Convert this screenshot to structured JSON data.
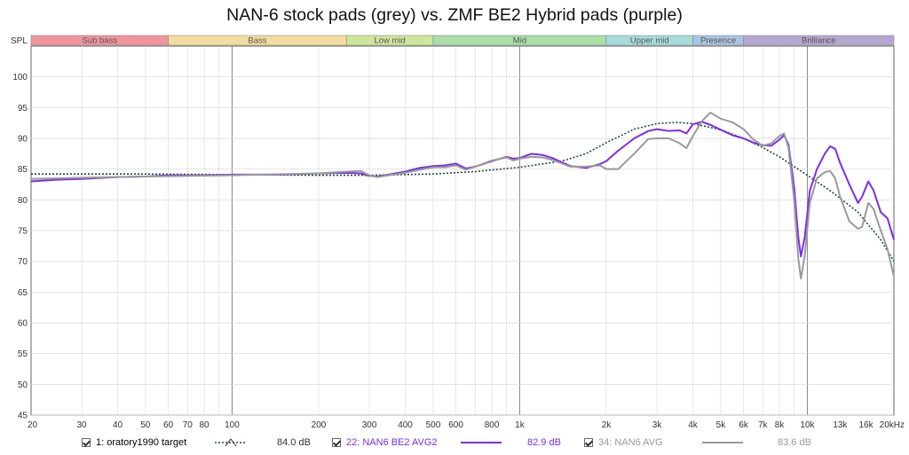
{
  "chart_data": {
    "type": "line",
    "title": "NAN-6 stock pads (grey) vs. ZMF BE2 Hybrid pads (purple)",
    "ylabel": "SPL",
    "xunit": "kHz",
    "x_scale": "log",
    "xlim": [
      20,
      20000
    ],
    "ylim": [
      45,
      105
    ],
    "grid": true,
    "y_ticks": [
      45,
      50,
      55,
      60,
      65,
      70,
      75,
      80,
      85,
      90,
      95,
      100
    ],
    "x_ticks": [
      {
        "v": 20,
        "label": "20"
      },
      {
        "v": 30,
        "label": "30"
      },
      {
        "v": 40,
        "label": "40"
      },
      {
        "v": 50,
        "label": "50"
      },
      {
        "v": 60,
        "label": "60"
      },
      {
        "v": 70,
        "label": "70"
      },
      {
        "v": 80,
        "label": "80"
      },
      {
        "v": 100,
        "label": "100"
      },
      {
        "v": 200,
        "label": "200"
      },
      {
        "v": 300,
        "label": "300"
      },
      {
        "v": 400,
        "label": "400"
      },
      {
        "v": 500,
        "label": "500"
      },
      {
        "v": 600,
        "label": "600"
      },
      {
        "v": 800,
        "label": "800"
      },
      {
        "v": 1000,
        "label": "1k"
      },
      {
        "v": 2000,
        "label": "2k"
      },
      {
        "v": 3000,
        "label": "3k"
      },
      {
        "v": 4000,
        "label": "4k"
      },
      {
        "v": 5000,
        "label": "5k"
      },
      {
        "v": 6000,
        "label": "6k"
      },
      {
        "v": 7000,
        "label": "7k"
      },
      {
        "v": 8000,
        "label": "8k"
      },
      {
        "v": 10000,
        "label": "10k"
      },
      {
        "v": 13000,
        "label": "13k"
      },
      {
        "v": 16000,
        "label": "16k"
      },
      {
        "v": 20000,
        "label": "20kHz"
      }
    ],
    "bands": [
      {
        "name": "Sub bass",
        "from": 20,
        "to": 60,
        "color": "#f0959b"
      },
      {
        "name": "Bass",
        "from": 60,
        "to": 250,
        "color": "#f3dd9c"
      },
      {
        "name": "Low mid",
        "from": 250,
        "to": 500,
        "color": "#cfe79c"
      },
      {
        "name": "Mid",
        "from": 500,
        "to": 2000,
        "color": "#a8e0a8"
      },
      {
        "name": "Upper mid",
        "from": 2000,
        "to": 4000,
        "color": "#a6dcdc"
      },
      {
        "name": "Presence",
        "from": 4000,
        "to": 6000,
        "color": "#a8c4e2"
      },
      {
        "name": "Brilliance",
        "from": 6000,
        "to": 20000,
        "color": "#b7a6d1"
      }
    ],
    "series": [
      {
        "name": "1: oratory1990 target",
        "color": "#1e4a3c",
        "dash": "2,2",
        "level": "84.0 dB",
        "points": [
          [
            20,
            84.2
          ],
          [
            50,
            84.2
          ],
          [
            100,
            84.1
          ],
          [
            200,
            84.0
          ],
          [
            300,
            84.0
          ],
          [
            500,
            84.2
          ],
          [
            700,
            84.6
          ],
          [
            1000,
            85.3
          ],
          [
            1400,
            86.3
          ],
          [
            1700,
            87.5
          ],
          [
            2000,
            89.3
          ],
          [
            2500,
            91.5
          ],
          [
            3000,
            92.4
          ],
          [
            3500,
            92.6
          ],
          [
            4000,
            92.4
          ],
          [
            5000,
            91.4
          ],
          [
            6000,
            90.0
          ],
          [
            7000,
            88.5
          ],
          [
            8000,
            87.0
          ],
          [
            10000,
            84.0
          ],
          [
            12000,
            81.5
          ],
          [
            15000,
            78.0
          ],
          [
            18000,
            73.5
          ],
          [
            20000,
            70.0
          ]
        ]
      },
      {
        "name": "22: NAN6 BE2 AVG2",
        "color": "#7b2ee6",
        "dash": "",
        "level": "82.9 dB",
        "points": [
          [
            20,
            83.0
          ],
          [
            25,
            83.3
          ],
          [
            30,
            83.4
          ],
          [
            40,
            83.7
          ],
          [
            50,
            83.8
          ],
          [
            60,
            84.0
          ],
          [
            80,
            84.0
          ],
          [
            100,
            84.1
          ],
          [
            150,
            84.1
          ],
          [
            200,
            84.3
          ],
          [
            250,
            84.4
          ],
          [
            280,
            84.3
          ],
          [
            300,
            83.9
          ],
          [
            320,
            83.8
          ],
          [
            350,
            84.1
          ],
          [
            400,
            84.6
          ],
          [
            450,
            85.2
          ],
          [
            500,
            85.5
          ],
          [
            550,
            85.6
          ],
          [
            600,
            85.9
          ],
          [
            650,
            85.1
          ],
          [
            700,
            85.4
          ],
          [
            800,
            86.3
          ],
          [
            900,
            87.0
          ],
          [
            950,
            86.7
          ],
          [
            1000,
            86.8
          ],
          [
            1100,
            87.5
          ],
          [
            1200,
            87.3
          ],
          [
            1300,
            86.8
          ],
          [
            1500,
            85.5
          ],
          [
            1700,
            85.2
          ],
          [
            1900,
            85.8
          ],
          [
            2000,
            86.3
          ],
          [
            2200,
            88.0
          ],
          [
            2500,
            90.0
          ],
          [
            2800,
            91.2
          ],
          [
            3000,
            91.5
          ],
          [
            3300,
            91.2
          ],
          [
            3600,
            91.3
          ],
          [
            3800,
            90.8
          ],
          [
            4000,
            92.3
          ],
          [
            4300,
            92.7
          ],
          [
            4600,
            92.2
          ],
          [
            5000,
            91.4
          ],
          [
            5500,
            90.5
          ],
          [
            6000,
            90.0
          ],
          [
            6500,
            89.3
          ],
          [
            7000,
            88.9
          ],
          [
            7500,
            88.8
          ],
          [
            8000,
            89.8
          ],
          [
            8300,
            90.5
          ],
          [
            8600,
            89.0
          ],
          [
            9000,
            82.0
          ],
          [
            9300,
            74.0
          ],
          [
            9500,
            70.8
          ],
          [
            9800,
            74.0
          ],
          [
            10200,
            81.5
          ],
          [
            10800,
            85.0
          ],
          [
            11500,
            87.5
          ],
          [
            12000,
            88.7
          ],
          [
            12500,
            88.3
          ],
          [
            13000,
            86.0
          ],
          [
            14000,
            82.5
          ],
          [
            15000,
            79.5
          ],
          [
            15500,
            80.5
          ],
          [
            16300,
            83.0
          ],
          [
            17000,
            81.5
          ],
          [
            18000,
            78.0
          ],
          [
            19000,
            77.0
          ],
          [
            20000,
            73.5
          ]
        ]
      },
      {
        "name": "34: NAN6 AVG",
        "color": "#9a9a9a",
        "dash": "",
        "level": "83.6 dB",
        "points": [
          [
            20,
            83.4
          ],
          [
            30,
            83.6
          ],
          [
            50,
            83.8
          ],
          [
            100,
            84.0
          ],
          [
            200,
            84.3
          ],
          [
            250,
            84.6
          ],
          [
            280,
            84.7
          ],
          [
            300,
            84.0
          ],
          [
            320,
            83.7
          ],
          [
            350,
            84.0
          ],
          [
            400,
            84.4
          ],
          [
            450,
            84.9
          ],
          [
            500,
            85.3
          ],
          [
            550,
            85.3
          ],
          [
            600,
            85.6
          ],
          [
            650,
            84.9
          ],
          [
            700,
            85.4
          ],
          [
            800,
            86.4
          ],
          [
            900,
            86.9
          ],
          [
            950,
            86.4
          ],
          [
            1000,
            86.7
          ],
          [
            1100,
            87.0
          ],
          [
            1200,
            86.9
          ],
          [
            1300,
            86.5
          ],
          [
            1500,
            85.4
          ],
          [
            1700,
            85.4
          ],
          [
            1900,
            85.6
          ],
          [
            2000,
            85.0
          ],
          [
            2200,
            85.0
          ],
          [
            2500,
            87.5
          ],
          [
            2800,
            89.9
          ],
          [
            3000,
            90.0
          ],
          [
            3300,
            90.0
          ],
          [
            3600,
            89.2
          ],
          [
            3800,
            88.4
          ],
          [
            4000,
            90.4
          ],
          [
            4300,
            92.8
          ],
          [
            4600,
            94.2
          ],
          [
            5000,
            93.2
          ],
          [
            5500,
            92.6
          ],
          [
            6000,
            91.5
          ],
          [
            6500,
            89.8
          ],
          [
            7000,
            88.8
          ],
          [
            7500,
            89.2
          ],
          [
            8000,
            90.4
          ],
          [
            8300,
            90.8
          ],
          [
            8600,
            88.5
          ],
          [
            9000,
            80.0
          ],
          [
            9300,
            70.5
          ],
          [
            9500,
            67.2
          ],
          [
            9800,
            71.0
          ],
          [
            10200,
            79.5
          ],
          [
            10800,
            83.5
          ],
          [
            11500,
            84.5
          ],
          [
            12000,
            84.7
          ],
          [
            12500,
            83.5
          ],
          [
            13000,
            80.5
          ],
          [
            14000,
            76.5
          ],
          [
            15000,
            75.3
          ],
          [
            15500,
            75.6
          ],
          [
            16300,
            79.5
          ],
          [
            17000,
            78.5
          ],
          [
            18000,
            75.0
          ],
          [
            19000,
            72.0
          ],
          [
            20000,
            67.5
          ]
        ]
      }
    ]
  }
}
